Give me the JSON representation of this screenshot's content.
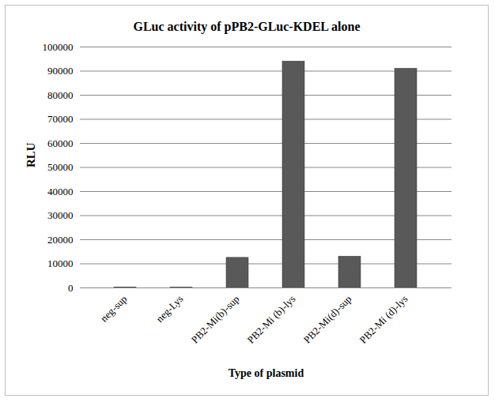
{
  "chart_data": {
    "type": "bar",
    "title": "GLuc activity of pPB2-GLuc-KDEL alone",
    "x_label": "Type of plasmid",
    "y_label": "RLU",
    "categories": [
      "neg-sup",
      "neg-Lys",
      "PB2-Mi(b)-sup",
      "PB2-Mi (b)-lys",
      "PB2-Mi(d)-sup",
      "PB2-Mi (d)-lys"
    ],
    "values": [
      200,
      100,
      12500,
      94000,
      13000,
      91000
    ],
    "color": "#595959",
    "ylim": [
      0,
      100000
    ],
    "yticks": [
      0,
      10000,
      20000,
      30000,
      40000,
      50000,
      60000,
      70000,
      80000,
      90000,
      100000
    ],
    "grid": true
  }
}
